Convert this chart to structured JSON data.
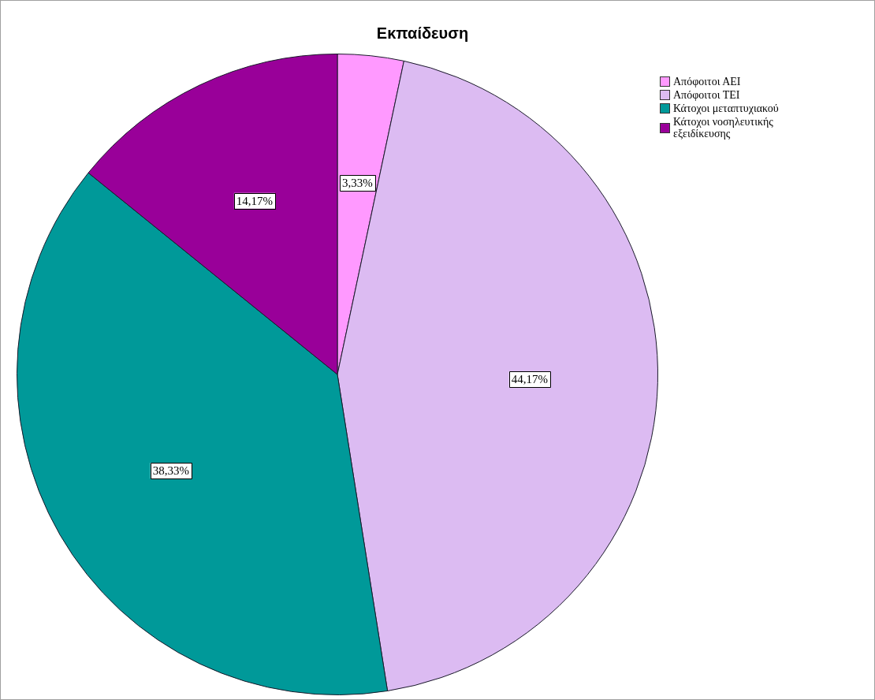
{
  "chart_data": {
    "type": "pie",
    "title": "Εκπαίδευση",
    "categories": [
      "Απόφοιτοι ΑΕΙ",
      "Απόφοιτοι ΤΕΙ",
      "Κάτοχοι μεταπτυχιακού",
      "Κάτοχοι νοσηλευτικής εξειδίκευσης"
    ],
    "values": [
      3.33,
      44.17,
      38.33,
      14.17
    ],
    "colors": [
      "#ff99ff",
      "#dcbbf2",
      "#009999",
      "#990099"
    ],
    "value_labels": [
      "3,33%",
      "44,17%",
      "38,33%",
      "14,17%"
    ],
    "legend": "top right"
  }
}
